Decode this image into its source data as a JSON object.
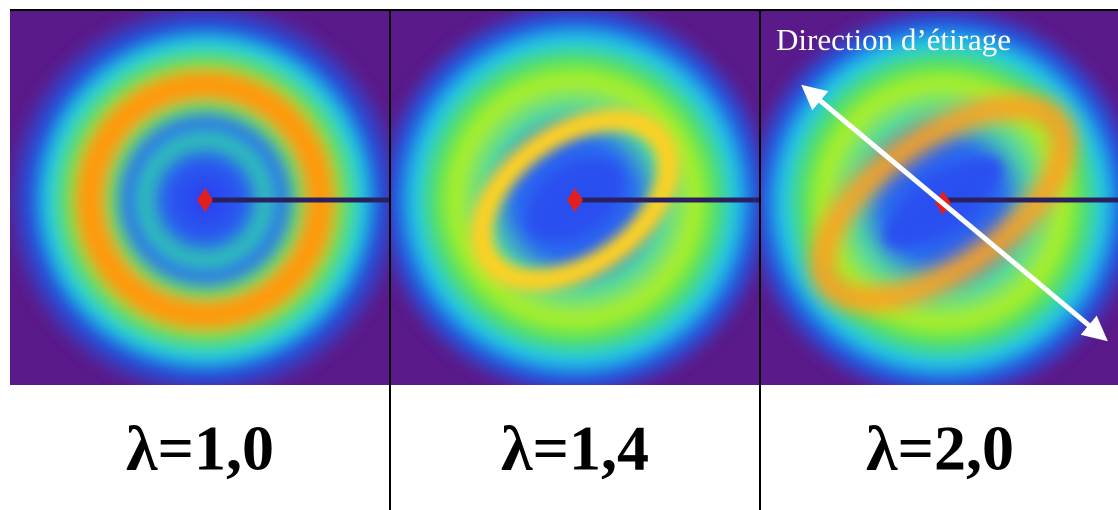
{
  "annotation": "Direction d’étirage",
  "panels": [
    {
      "label": "λ=1,0"
    },
    {
      "label": "λ=1,4"
    },
    {
      "label": "λ=2,0"
    }
  ]
}
